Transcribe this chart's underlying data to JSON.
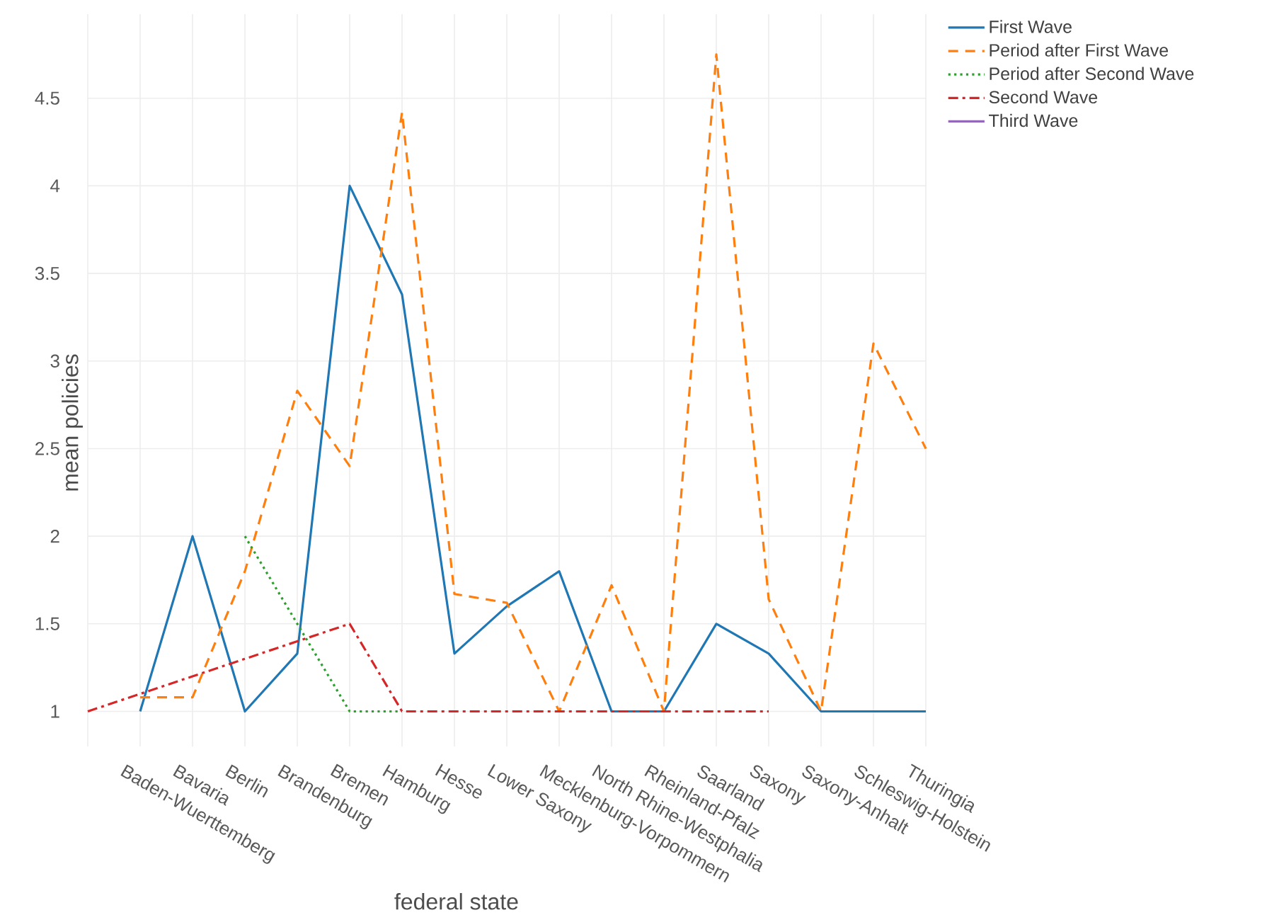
{
  "chart_data": {
    "type": "line",
    "xlabel": "federal state",
    "ylabel": "mean policies",
    "categories": [
      null,
      "Baden-Wuerttemberg",
      "Bavaria",
      "Berlin",
      "Brandenburg",
      "Bremen",
      "Hamburg",
      "Hesse",
      "Lower Saxony",
      "Mecklenburg-Vorpommern",
      "North Rhine-Westphalia",
      "Rheinland-Pfalz",
      "Saarland",
      "Saxony",
      "Saxony-Anhalt",
      "Schleswig-Holstein",
      "Thuringia"
    ],
    "series": [
      {
        "name": "First Wave",
        "color": "#1f77b4",
        "line_style": "solid",
        "values": [
          null,
          1,
          2,
          1,
          1.33,
          4,
          3.38,
          1.33,
          1.6,
          1.8,
          1,
          1,
          1.5,
          1.33,
          1,
          1,
          1
        ]
      },
      {
        "name": "Period after First Wave",
        "color": "#ff7f0e",
        "line_style": "dashed",
        "values": [
          null,
          1.08,
          1.08,
          1.8,
          2.83,
          2.4,
          4.42,
          1.67,
          1.62,
          1,
          1.72,
          1,
          4.75,
          1.64,
          1,
          3.1,
          2.5
        ]
      },
      {
        "name": "Period after Second Wave",
        "color": "#2ca02c",
        "line_style": "dotted",
        "values": [
          null,
          null,
          null,
          2,
          1.5,
          1,
          1,
          null,
          null,
          null,
          null,
          null,
          null,
          null,
          null,
          null,
          null
        ]
      },
      {
        "name": "Second Wave",
        "color": "#d62728",
        "line_style": "dashdot",
        "values": [
          1,
          1.1,
          1.2,
          1.3,
          1.4,
          1.5,
          1,
          1,
          1,
          1,
          1,
          1,
          1,
          1,
          null,
          null,
          null
        ]
      },
      {
        "name": "Third Wave",
        "color": "#9467bd",
        "line_style": "solid",
        "values": [
          null,
          null,
          null,
          null,
          null,
          null,
          null,
          null,
          null,
          null,
          null,
          null,
          null,
          null,
          null,
          null,
          null
        ]
      }
    ],
    "ylim": [
      0.8,
      4.98
    ],
    "yticks": [
      1,
      1.5,
      2,
      2.5,
      3,
      3.5,
      4,
      4.5
    ],
    "grid": true,
    "legend": "top right",
    "marker": "none"
  }
}
